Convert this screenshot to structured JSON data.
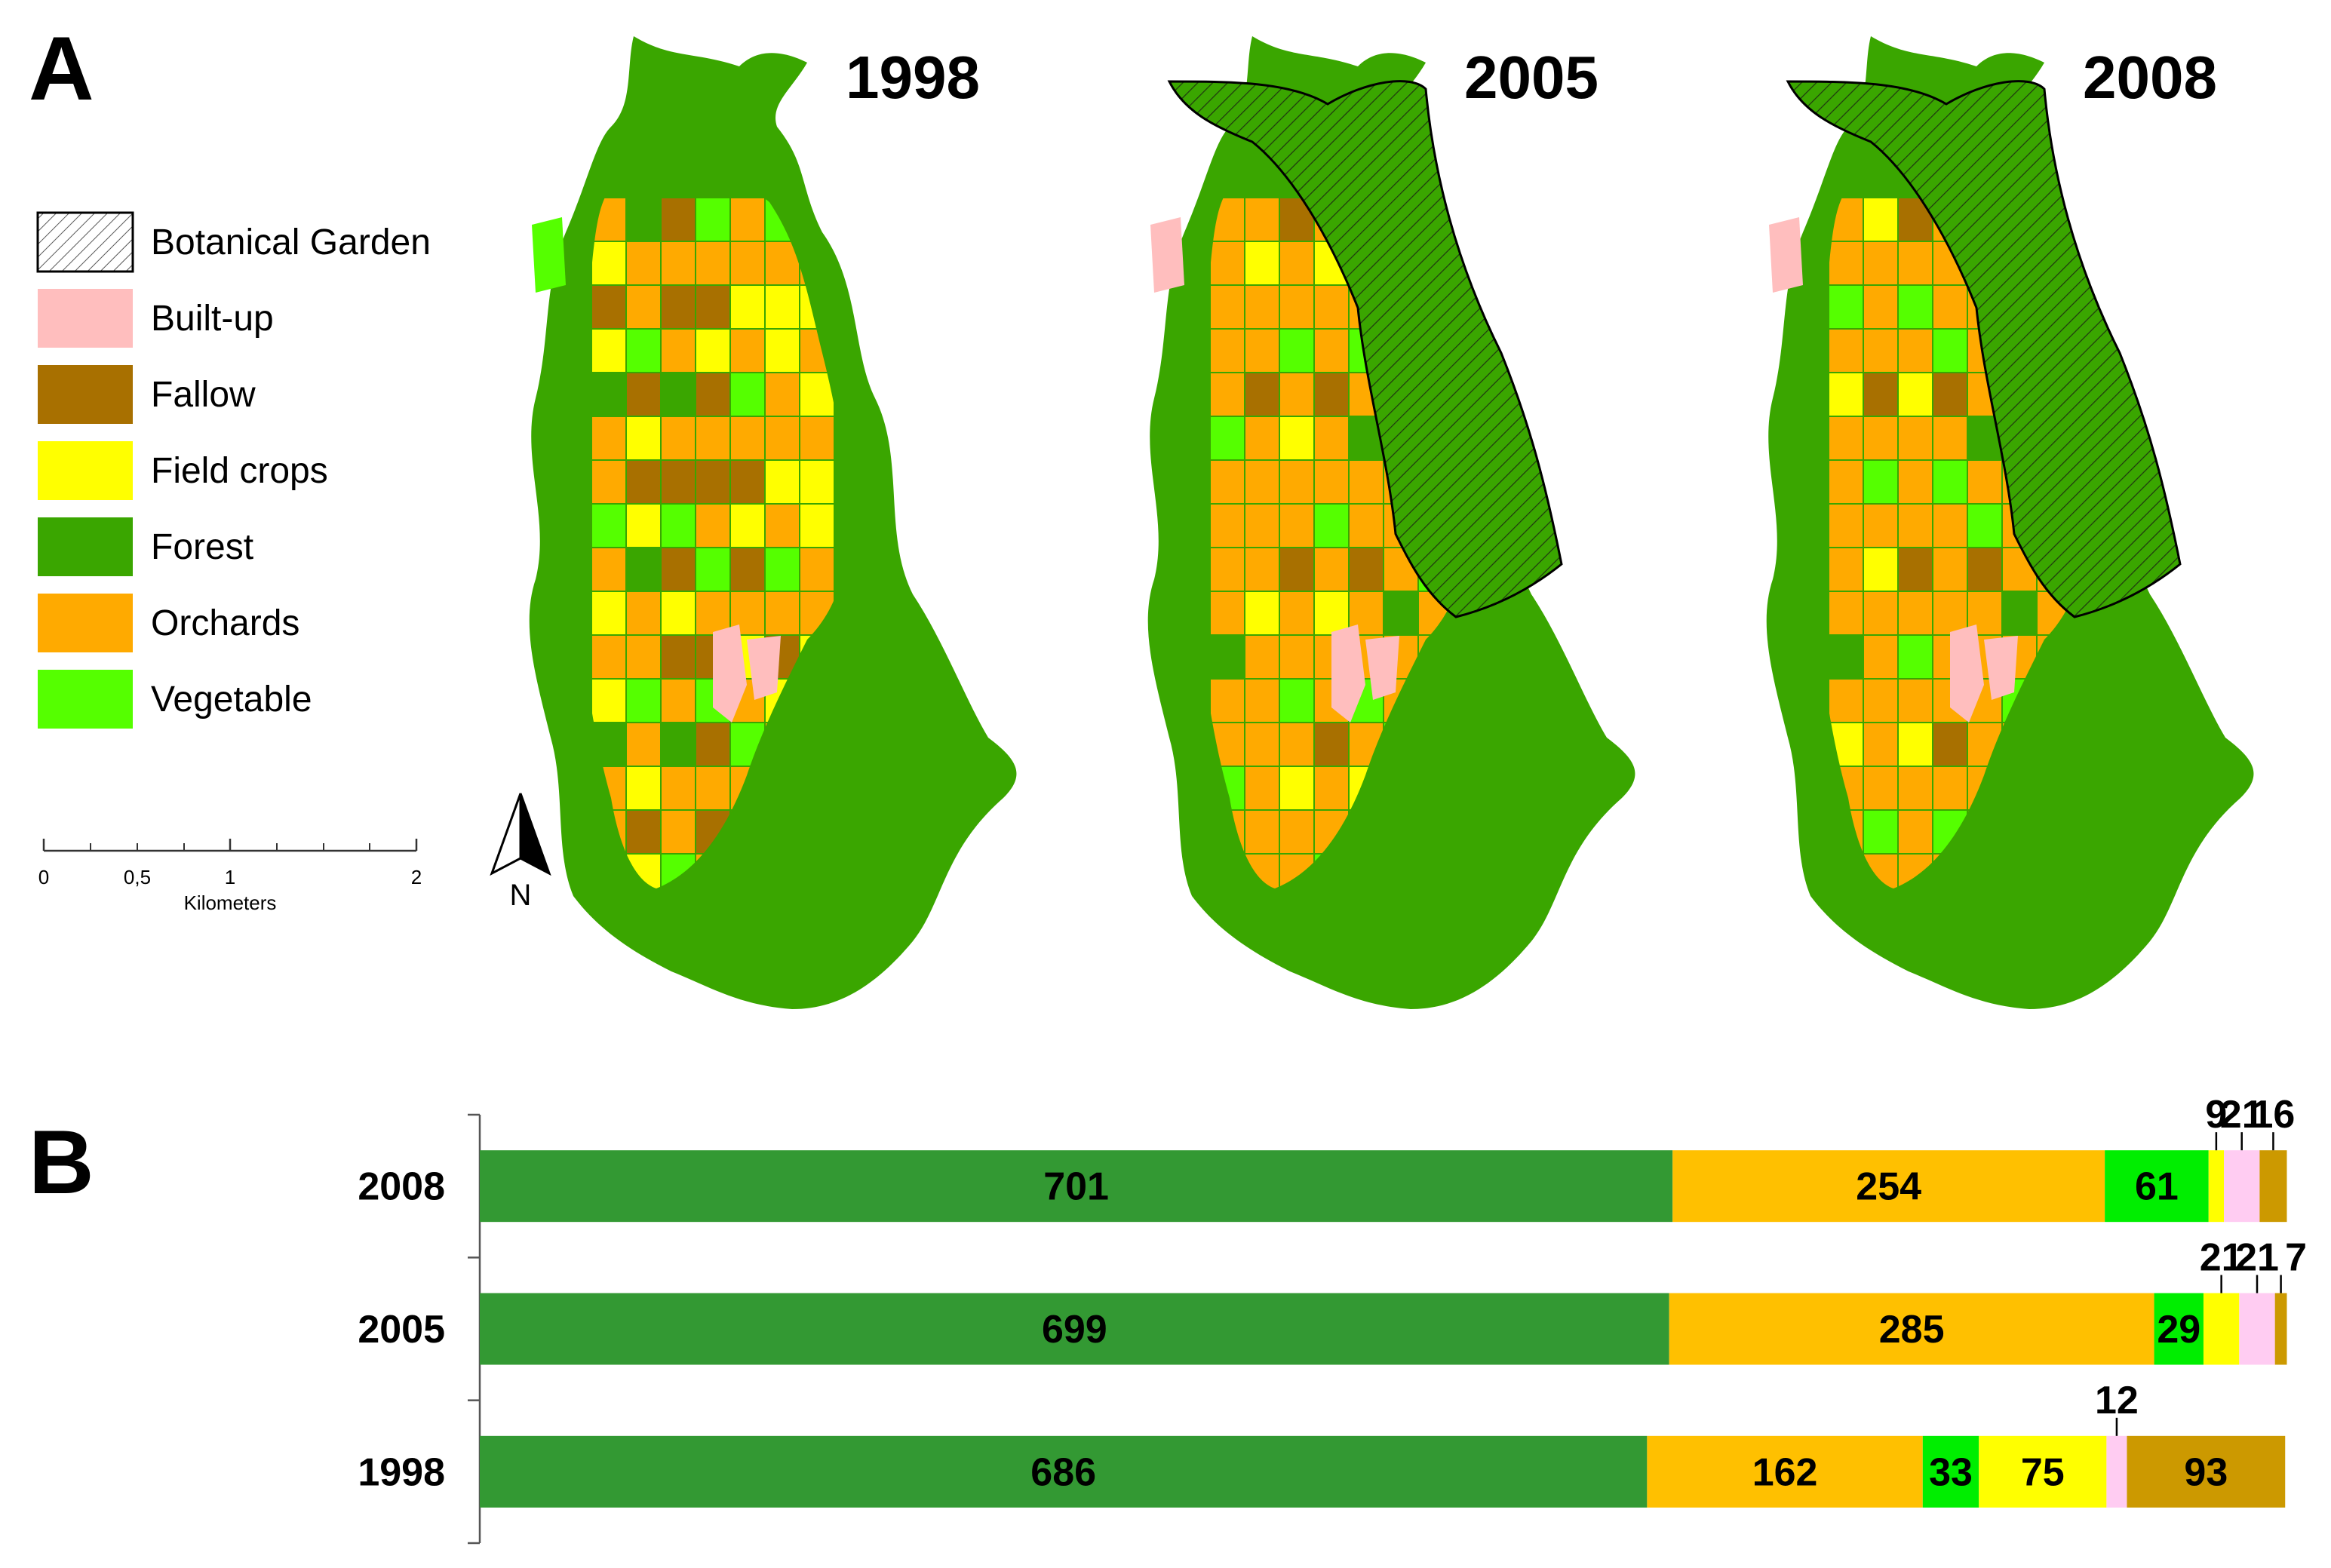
{
  "panel_labels": {
    "a": "A",
    "b": "B"
  },
  "colors": {
    "forest": "#3aa600",
    "orchards": "#ffaa00",
    "field_crops": "#ffff00",
    "vegetable": "#55ff00",
    "fallow": "#a87000",
    "built_up": "#ffbebe",
    "bar_forest": "#339933",
    "bar_orchards": "#ffc000",
    "bar_vegetable": "#00ee00",
    "bar_field_crops": "#ffff00",
    "bar_built_up": "#ffccf2",
    "bar_fallow": "#cc9900"
  },
  "maps": [
    {
      "year": "1998",
      "garden": false
    },
    {
      "year": "2005",
      "garden": true
    },
    {
      "year": "2008",
      "garden": true
    }
  ],
  "legend": [
    {
      "label": "Botanical Garden",
      "pattern": "hatch"
    },
    {
      "label": "Built-up",
      "color": "#ffbebe"
    },
    {
      "label": "Fallow",
      "color": "#a87000"
    },
    {
      "label": "Field crops",
      "color": "#ffff00"
    },
    {
      "label": "Forest",
      "color": "#3aa600"
    },
    {
      "label": "Orchards",
      "color": "#ffaa00"
    },
    {
      "label": "Vegetable",
      "color": "#55ff00"
    }
  ],
  "scalebar": {
    "ticks": [
      "0",
      "0,5",
      "1",
      "2"
    ],
    "unit": "Kilometers"
  },
  "north_label": "N",
  "chart_data": {
    "type": "bar",
    "orientation": "horizontal",
    "stacked": true,
    "categories": [
      "2008",
      "2005",
      "1998"
    ],
    "segment_order": [
      "forest",
      "orchards",
      "vegetable",
      "field_crops",
      "built_up",
      "fallow"
    ],
    "series": [
      {
        "key": "forest",
        "color": "#339933",
        "values": [
          701,
          699,
          686
        ]
      },
      {
        "key": "orchards",
        "color": "#ffc000",
        "values": [
          254,
          285,
          162
        ]
      },
      {
        "key": "vegetable",
        "color": "#00ee00",
        "values": [
          61,
          29,
          33
        ]
      },
      {
        "key": "field_crops",
        "color": "#ffff00",
        "values": [
          9,
          21,
          75
        ]
      },
      {
        "key": "built_up",
        "color": "#ffccf2",
        "values": [
          21,
          21,
          12
        ]
      },
      {
        "key": "fallow",
        "color": "#cc9900",
        "values": [
          16,
          7,
          93
        ]
      }
    ],
    "xlim": [
      0,
      1064
    ],
    "axis": {
      "x_visible": false,
      "y_axis_line": true
    },
    "legend": "none"
  }
}
